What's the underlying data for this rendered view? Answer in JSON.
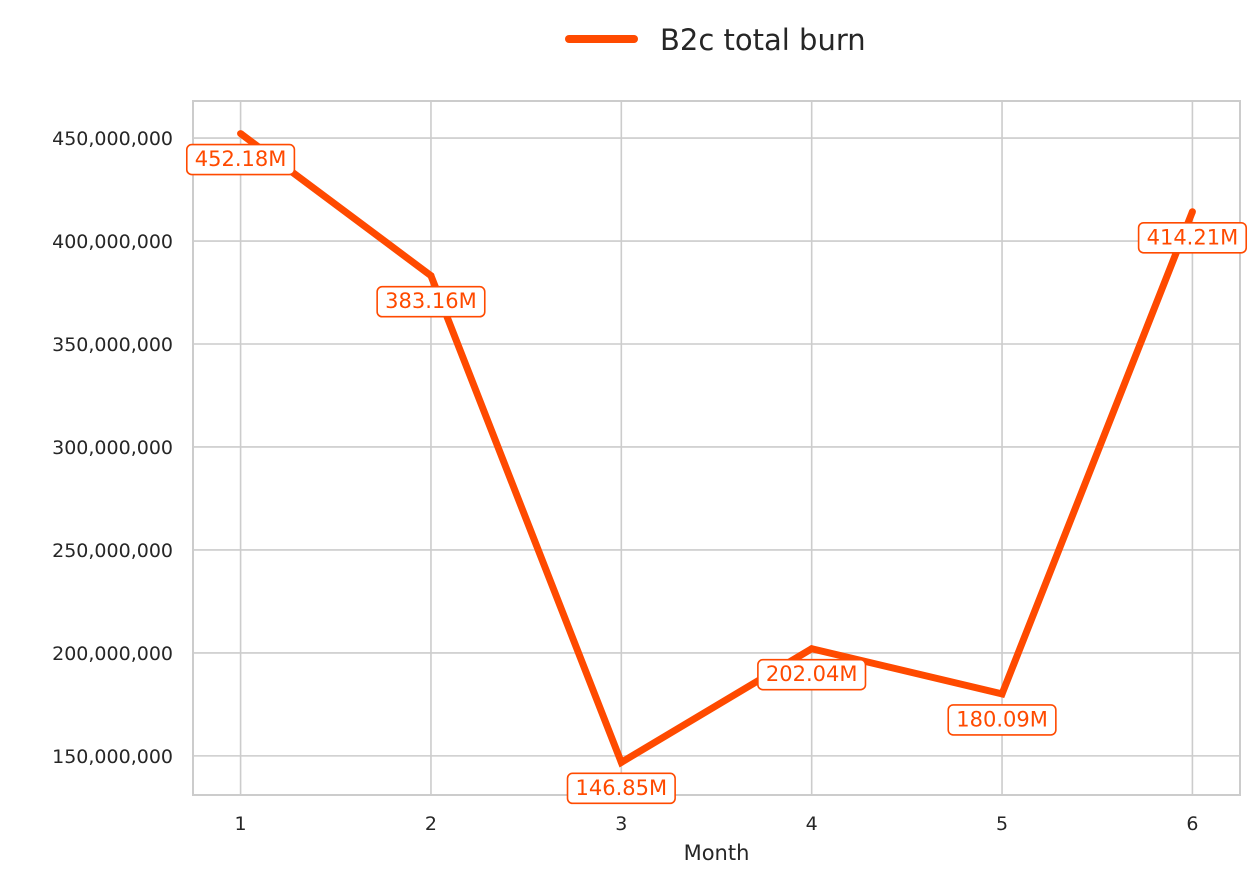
{
  "chart_data": {
    "type": "line",
    "title": "",
    "xlabel": "Month",
    "ylabel": "",
    "x": [
      1,
      2,
      3,
      4,
      5,
      6
    ],
    "x_tick_labels": [
      "1",
      "2",
      "3",
      "4",
      "5",
      "6"
    ],
    "xlim": [
      0.75,
      6.25
    ],
    "ylim": [
      131000000,
      468000000
    ],
    "y_ticks": [
      150000000,
      200000000,
      250000000,
      300000000,
      350000000,
      400000000,
      450000000
    ],
    "y_tick_labels": [
      "150,000,000",
      "200,000,000",
      "250,000,000",
      "300,000,000",
      "350,000,000",
      "400,000,000",
      "450,000,000"
    ],
    "series": [
      {
        "name": "B2c total burn",
        "color": "#ff4a00",
        "values": [
          452180000,
          383160000,
          146850000,
          202040000,
          180090000,
          414210000
        ],
        "data_labels": [
          "452.18M",
          "383.16M",
          "146.85M",
          "202.04M",
          "180.09M",
          "414.21M"
        ]
      }
    ],
    "legend": {
      "placement": "top-center",
      "labels": [
        "B2c total burn"
      ]
    },
    "grid": true,
    "grid_color": "#cccccc",
    "text_color": "#262626"
  }
}
